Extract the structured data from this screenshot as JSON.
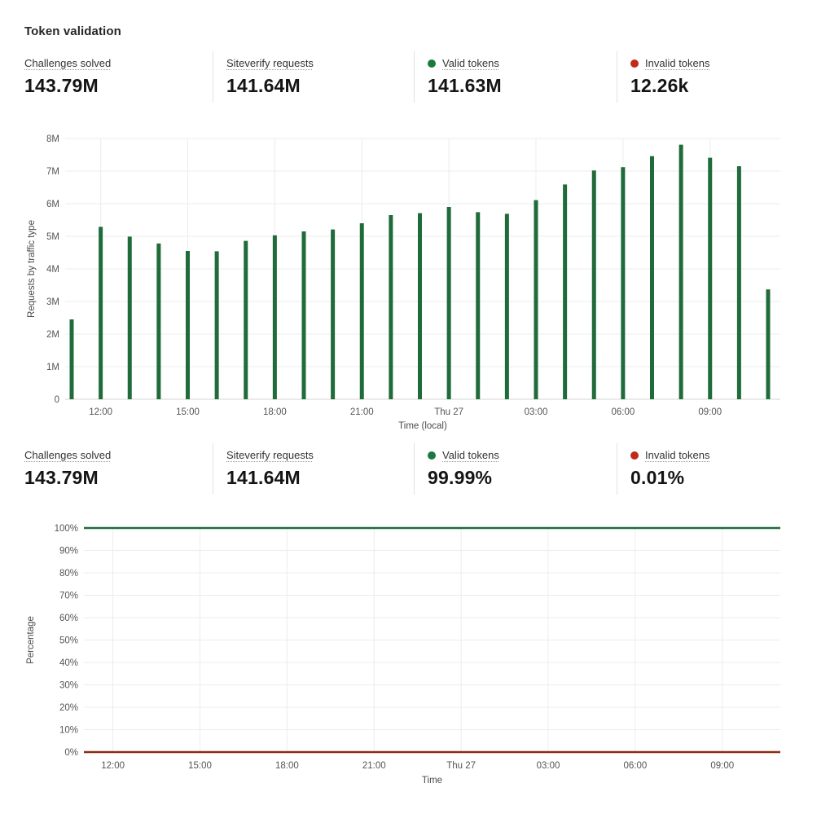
{
  "title": "Token validation",
  "colors": {
    "green_dot": "#1a7a3d",
    "green_series": "#1f6b3a",
    "red_dot": "#c02a19",
    "red_series": "#8e2a13",
    "grid": "#ececec",
    "axis_baseline": "#d4d4d4",
    "tick_text": "#555555"
  },
  "stats_top": [
    {
      "label": "Challenges solved",
      "value": "143.79M"
    },
    {
      "label": "Siteverify requests",
      "value": "141.64M"
    },
    {
      "label": "Valid tokens",
      "value": "141.63M",
      "dot": "green"
    },
    {
      "label": "Invalid tokens",
      "value": "12.26k",
      "dot": "red"
    }
  ],
  "stats_bottom": [
    {
      "label": "Challenges solved",
      "value": "143.79M"
    },
    {
      "label": "Siteverify requests",
      "value": "141.64M"
    },
    {
      "label": "Valid tokens",
      "value": "99.99%",
      "dot": "green"
    },
    {
      "label": "Invalid tokens",
      "value": "0.01%",
      "dot": "red"
    }
  ],
  "chart_data": [
    {
      "type": "bar",
      "title": "",
      "ylabel": "Requests by traffic type",
      "xlabel": "Time (local)",
      "y_unit": "M (millions of requests)",
      "ylim": [
        0,
        8
      ],
      "yticks": [
        "0",
        "1M",
        "2M",
        "3M",
        "4M",
        "5M",
        "6M",
        "7M",
        "8M"
      ],
      "x_interval": "1 hour per bar, starting 11:00 Wed 26 through 11:00 Thu 27",
      "xtick_labels": [
        "12:00",
        "15:00",
        "18:00",
        "21:00",
        "Thu 27",
        "03:00",
        "06:00",
        "09:00"
      ],
      "xtick_indices": [
        1,
        4,
        7,
        10,
        13,
        16,
        19,
        22
      ],
      "grid": true,
      "legend": "none",
      "series": [
        {
          "name": "Valid tokens",
          "color": "green_series",
          "values": [
            2.45,
            5.29,
            4.99,
            4.78,
            4.55,
            4.54,
            4.86,
            5.03,
            5.15,
            5.21,
            5.4,
            5.65,
            5.71,
            5.9,
            5.74,
            5.69,
            6.11,
            6.59,
            7.02,
            7.12,
            7.46,
            7.81,
            7.41,
            7.15,
            3.37
          ]
        }
      ]
    },
    {
      "type": "line",
      "title": "",
      "ylabel": "Percentage",
      "xlabel": "Time",
      "y_unit": "%",
      "ylim": [
        0,
        100
      ],
      "yticks": [
        "0%",
        "10%",
        "20%",
        "30%",
        "40%",
        "50%",
        "60%",
        "70%",
        "80%",
        "90%",
        "100%"
      ],
      "xtick_labels": [
        "12:00",
        "15:00",
        "18:00",
        "21:00",
        "Thu 27",
        "03:00",
        "06:00",
        "09:00"
      ],
      "xtick_indices": [
        1,
        4,
        7,
        10,
        13,
        16,
        19,
        22
      ],
      "grid": true,
      "legend": "none",
      "series": [
        {
          "name": "Valid tokens",
          "color": "green_series",
          "constant": 99.99
        },
        {
          "name": "Invalid tokens",
          "color": "red_series",
          "constant": 0.01
        }
      ]
    }
  ]
}
